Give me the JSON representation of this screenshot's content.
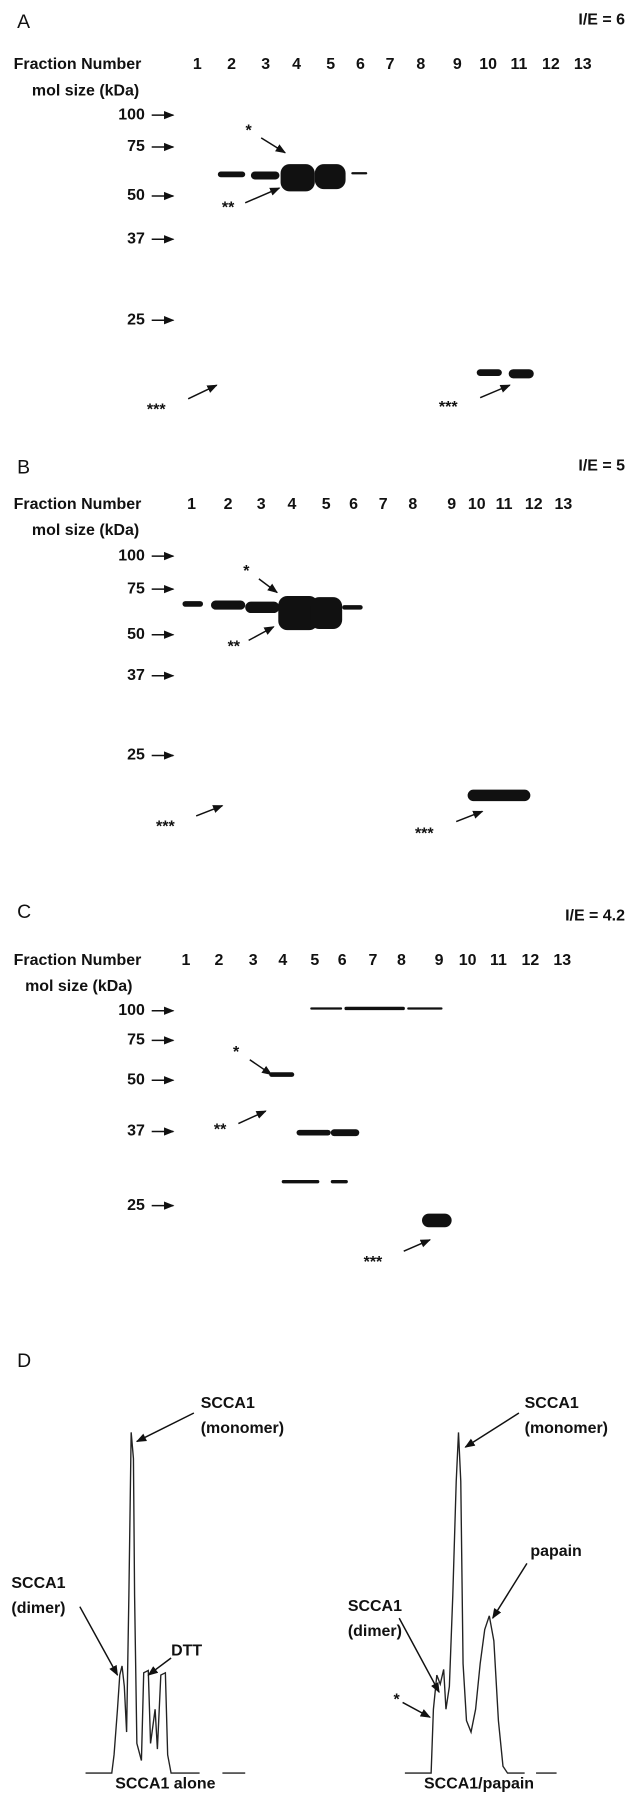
{
  "panels": [
    {
      "label": "A",
      "ratio": "I/E = 6",
      "fraction_header": "Fraction Number",
      "fractions": [
        "1",
        "2",
        "3",
        "4",
        "5",
        "6",
        "7",
        "8",
        "9",
        "10",
        "11",
        "12",
        "13"
      ],
      "size_header": "mol size (kDa)",
      "markers": [
        "100",
        "75",
        "50",
        "37",
        "25"
      ],
      "stars": [
        "*",
        "**",
        "***",
        "***"
      ]
    },
    {
      "label": "B",
      "ratio": "I/E = 5",
      "fraction_header": "Fraction Number",
      "fractions": [
        "1",
        "2",
        "3",
        "4",
        "5",
        "6",
        "7",
        "8",
        "9",
        "10",
        "11",
        "12",
        "13"
      ],
      "size_header": "mol size (kDa)",
      "markers": [
        "100",
        "75",
        "50",
        "37",
        "25"
      ],
      "stars": [
        "*",
        "**",
        "***",
        "***"
      ]
    },
    {
      "label": "C",
      "ratio": "I/E = 4.2",
      "fraction_header": "Fraction Number",
      "fractions": [
        "1",
        "2",
        "3",
        "4",
        "5",
        "6",
        "7",
        "8",
        "9",
        "10",
        "11",
        "12",
        "13"
      ],
      "size_header": "mol size (kDa)",
      "markers": [
        "100",
        "75",
        "50",
        "37",
        "25"
      ],
      "stars": [
        "*",
        "**",
        "***"
      ]
    }
  ],
  "panel_d": {
    "label": "D",
    "left": {
      "monomer": [
        "SCCA1",
        "(monomer)"
      ],
      "dimer": [
        "SCCA1",
        "(dimer)"
      ],
      "dtt": "DTT",
      "caption": "SCCA1 alone"
    },
    "right": {
      "monomer": [
        "SCCA1",
        "(monomer)"
      ],
      "dimer": [
        "SCCA1",
        "(dimer)"
      ],
      "papain": "papain",
      "star": "*",
      "caption": "SCCA1/papain"
    }
  }
}
